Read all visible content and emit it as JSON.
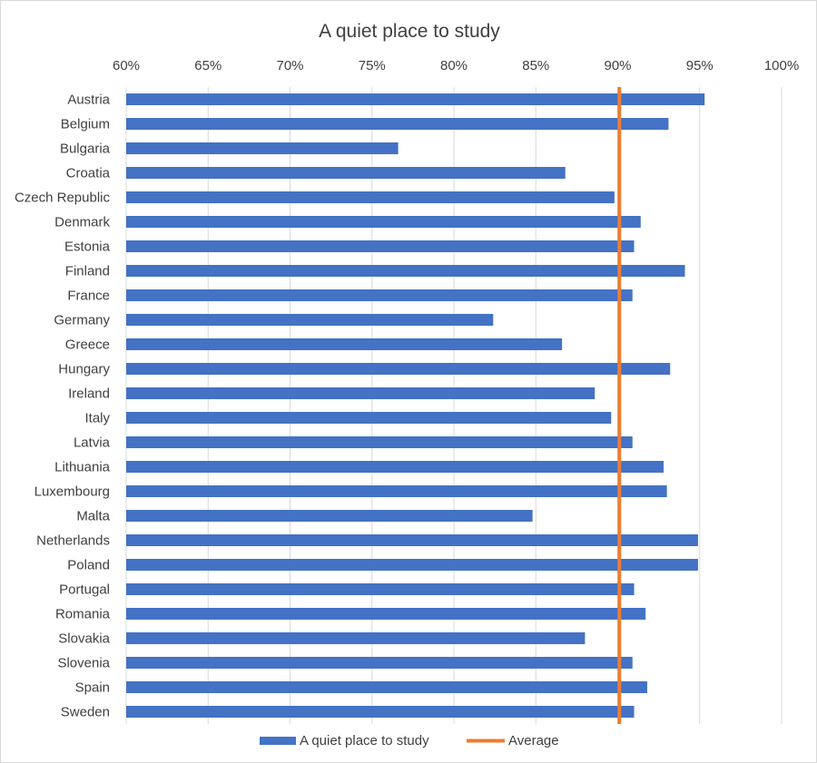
{
  "chart_data": {
    "type": "bar",
    "orientation": "horizontal",
    "title": "A quiet place to study",
    "xlabel": "",
    "ylabel": "",
    "xlim": [
      0.6,
      1.0
    ],
    "x_ticks": [
      "60%",
      "65%",
      "70%",
      "75%",
      "80%",
      "85%",
      "90%",
      "95%",
      "100%"
    ],
    "x_tick_values": [
      0.6,
      0.65,
      0.7,
      0.75,
      0.8,
      0.85,
      0.9,
      0.95,
      1.0
    ],
    "grid": true,
    "legend_position": "bottom",
    "categories": [
      "Austria",
      "Belgium",
      "Bulgaria",
      "Croatia",
      "Czech Republic",
      "Denmark",
      "Estonia",
      "Finland",
      "France",
      "Germany",
      "Greece",
      "Hungary",
      "Ireland",
      "Italy",
      "Latvia",
      "Lithuania",
      "Luxembourg",
      "Malta",
      "Netherlands",
      "Poland",
      "Portugal",
      "Romania",
      "Slovakia",
      "Slovenia",
      "Spain",
      "Sweden"
    ],
    "series": [
      {
        "name": "A quiet place to study",
        "color": "#4472c4",
        "values": [
          0.953,
          0.931,
          0.766,
          0.868,
          0.898,
          0.914,
          0.91,
          0.941,
          0.909,
          0.824,
          0.866,
          0.932,
          0.886,
          0.896,
          0.909,
          0.928,
          0.93,
          0.848,
          0.949,
          0.949,
          0.91,
          0.917,
          0.88,
          0.909,
          0.918,
          0.91
        ]
      }
    ],
    "reference_line": {
      "name": "Average",
      "color": "#ed7d31",
      "value": 0.901
    }
  }
}
